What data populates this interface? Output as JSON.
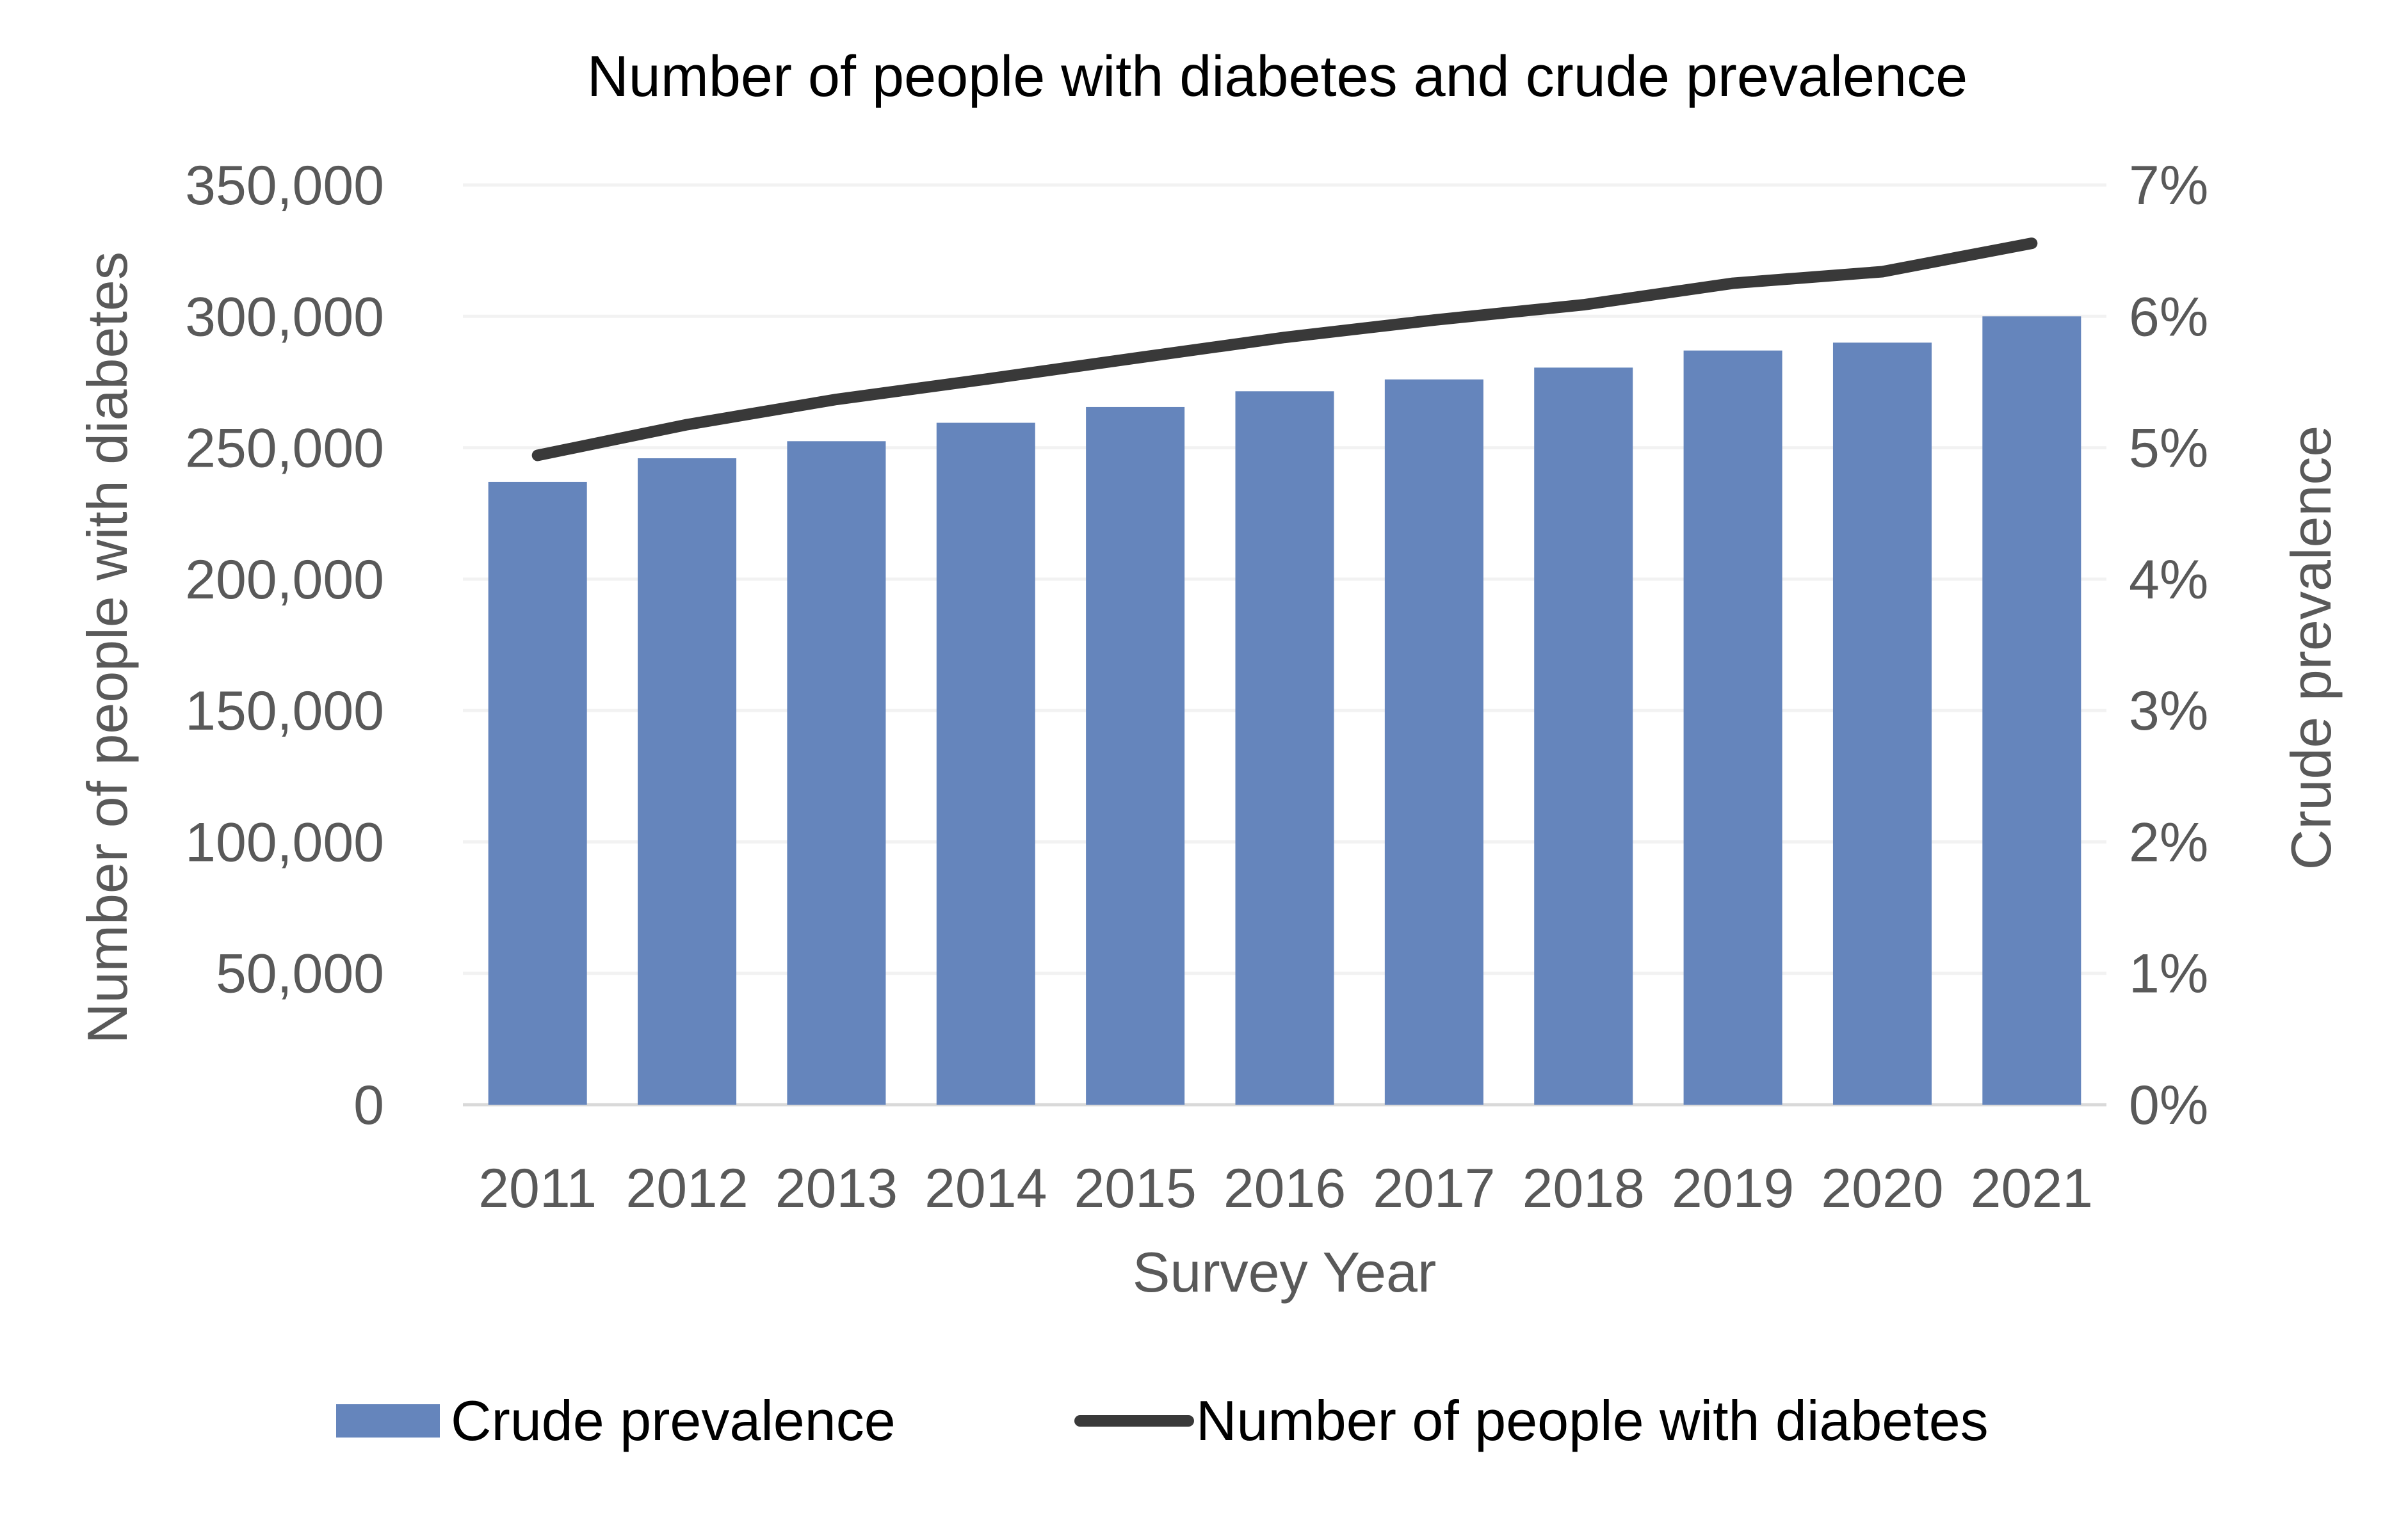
{
  "chart_data": {
    "type": "bar+line",
    "title": "Number of people with diabetes and crude prevalence",
    "xlabel": "Survey Year",
    "ylabel_left": "Number of people with diabetes",
    "ylabel_right": "Crude prevalence",
    "categories": [
      "2011",
      "2012",
      "2013",
      "2014",
      "2015",
      "2016",
      "2017",
      "2018",
      "2019",
      "2020",
      "2021"
    ],
    "ylim_left": [
      0,
      350000
    ],
    "ylim_right": [
      0,
      0.07
    ],
    "left_ticks": [
      "0",
      "50,000",
      "100,000",
      "150,000",
      "200,000",
      "250,000",
      "300,000",
      "350,000"
    ],
    "right_ticks": [
      "0%",
      "1%",
      "2%",
      "3%",
      "4%",
      "5%",
      "6%",
      "7%"
    ],
    "grid": true,
    "legend_position": "bottom",
    "series": [
      {
        "name": "Crude prevalence",
        "type": "bar",
        "axis": "right",
        "color": "#6585BC",
        "values": [
          0.0474,
          0.0492,
          0.0505,
          0.0519,
          0.0531,
          0.0543,
          0.0552,
          0.0561,
          0.0574,
          0.058,
          0.06
        ]
      },
      {
        "name": "Number of people with diabetes",
        "type": "line",
        "axis": "left",
        "color": "#393939",
        "values": [
          247100,
          258800,
          268400,
          276100,
          284100,
          292000,
          298600,
          304400,
          312600,
          317000,
          327800
        ]
      }
    ]
  }
}
